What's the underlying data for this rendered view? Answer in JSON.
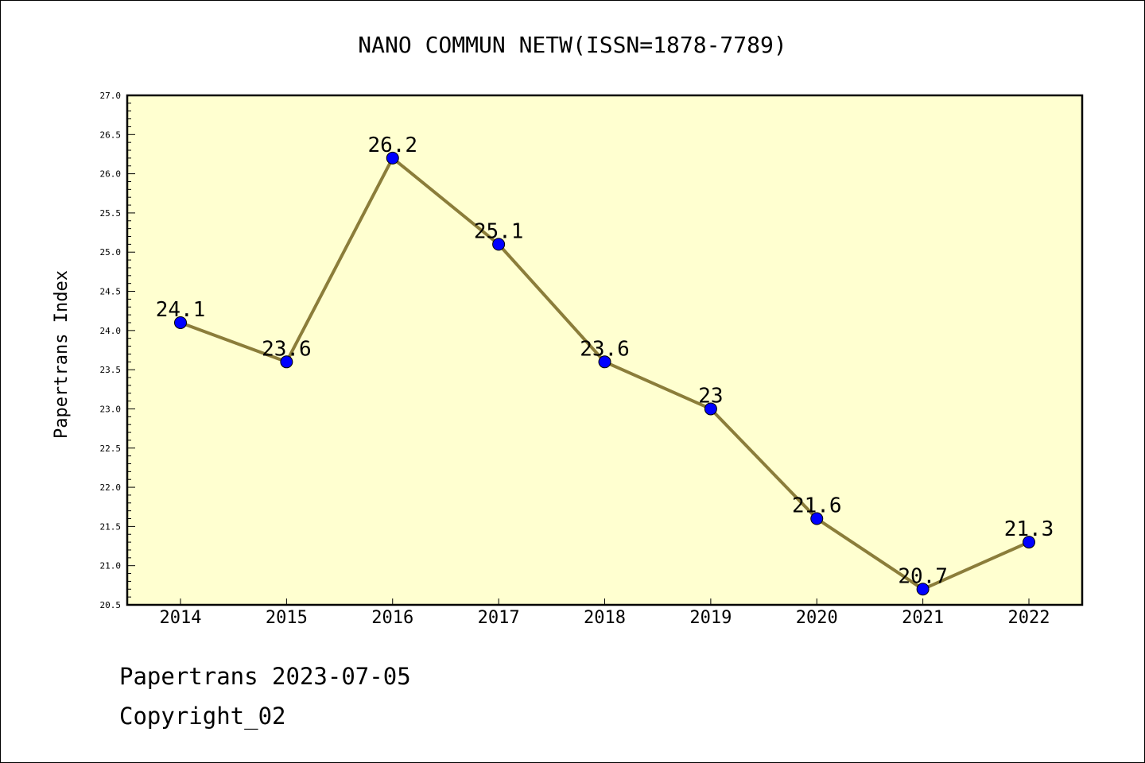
{
  "chart_data": {
    "type": "line",
    "title": "NANO COMMUN NETW(ISSN=1878-7789)",
    "xlabel": "",
    "ylabel": "Papertrans Index",
    "categories": [
      "2014",
      "2015",
      "2016",
      "2017",
      "2018",
      "2019",
      "2020",
      "2021",
      "2022"
    ],
    "series": [
      {
        "values": [
          24.1,
          23.6,
          26.2,
          25.1,
          23.6,
          23.0,
          21.6,
          20.7,
          21.3
        ],
        "data_labels": [
          "24.1",
          "23.6",
          "26.2",
          "25.1",
          "23.6",
          "23",
          "21.6",
          "20.7",
          "21.3"
        ]
      }
    ],
    "ylim": [
      20.5,
      27.0
    ],
    "yticks": [
      "20.5",
      "21.0",
      "21.5",
      "22.0",
      "22.5",
      "23.0",
      "23.5",
      "24.0",
      "24.5",
      "25.0",
      "25.5",
      "26.0",
      "26.5",
      "27.0"
    ],
    "grid": false,
    "legend": "none",
    "colors": {
      "plot_background": "#ffffd0",
      "line": "#8b7d3a",
      "marker": "#0000ff"
    }
  },
  "footer": {
    "line1": "Papertrans 2023-07-05",
    "line2": "Copyright_02"
  }
}
